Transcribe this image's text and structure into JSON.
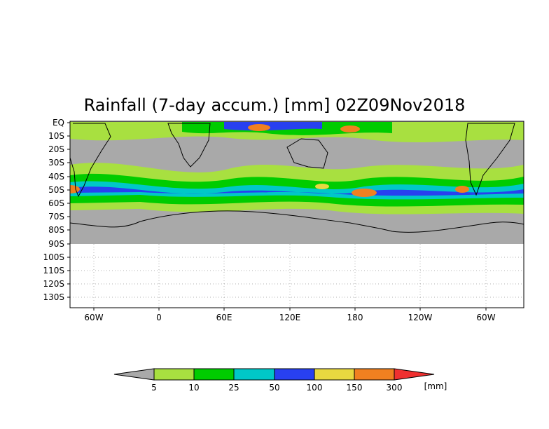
{
  "title": "Rainfall (7-day accum.) [mm] 02Z09Nov2018",
  "lat_labels": [
    "EQ",
    "10S",
    "20S",
    "30S",
    "40S",
    "50S",
    "60S",
    "70S",
    "80S",
    "90S",
    "100S",
    "110S",
    "120S",
    "130S"
  ],
  "lon_labels": [
    "60W",
    "0",
    "60E",
    "120E",
    "180",
    "120W",
    "60W"
  ],
  "colorbar": {
    "thresholds": [
      "5",
      "10",
      "25",
      "50",
      "100",
      "150",
      "300"
    ],
    "unit": "[mm]",
    "colors": [
      "#a9a9a9",
      "#a8e040",
      "#00cc00",
      "#00c8c8",
      "#2840f0",
      "#e8d840",
      "#f08020",
      "#f03030"
    ]
  },
  "colors": {
    "background": "#a9a9a9",
    "land_outline": "#000000",
    "blank_region": "#ffffff",
    "grid_dots": "#b0b0b0"
  }
}
